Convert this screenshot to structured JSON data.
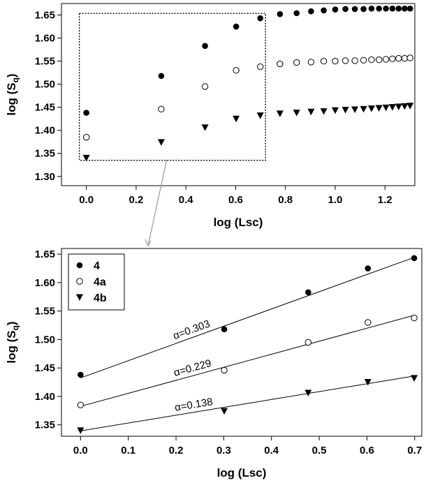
{
  "chart_data": [
    {
      "type": "scatter",
      "title": "",
      "xlabel": "log (Lsc)",
      "ylabel": "log (S",
      "ylabel_sub": "q",
      "ylabel_close": ")",
      "xlim": [
        -0.1,
        1.32
      ],
      "ylim": [
        1.28,
        1.675
      ],
      "xticks": [
        0.0,
        0.2,
        0.4,
        0.6,
        0.8,
        1.0,
        1.2
      ],
      "xtick_labels": [
        "0.0",
        "0.2",
        "0.4",
        "0.6",
        "0.8",
        "1.0",
        "1.2"
      ],
      "yticks": [
        1.3,
        1.35,
        1.4,
        1.45,
        1.5,
        1.55,
        1.6,
        1.65
      ],
      "ytick_labels": [
        "1.30",
        "1.35",
        "1.40",
        "1.45",
        "1.50",
        "1.55",
        "1.60",
        "1.65"
      ],
      "zoom_box": {
        "x": [
          0.0,
          0.72
        ],
        "y": [
          1.335,
          1.652
        ]
      },
      "series": [
        {
          "name": "4",
          "marker": "filled-circle",
          "x": [
            0.0,
            0.301,
            0.477,
            0.602,
            0.699,
            0.778,
            0.845,
            0.903,
            0.954,
            1.0,
            1.041,
            1.079,
            1.114,
            1.146,
            1.176,
            1.204,
            1.23,
            1.255,
            1.279,
            1.301
          ],
          "y": [
            1.438,
            1.518,
            1.583,
            1.625,
            1.643,
            1.652,
            1.654,
            1.658,
            1.66,
            1.662,
            1.663,
            1.663,
            1.663,
            1.664,
            1.664,
            1.664,
            1.664,
            1.664,
            1.664,
            1.664
          ]
        },
        {
          "name": "4a",
          "marker": "open-circle",
          "x": [
            0.0,
            0.301,
            0.477,
            0.602,
            0.699,
            0.778,
            0.845,
            0.903,
            0.954,
            1.0,
            1.041,
            1.079,
            1.114,
            1.146,
            1.176,
            1.204,
            1.23,
            1.255,
            1.279,
            1.301
          ],
          "y": [
            1.385,
            1.446,
            1.495,
            1.53,
            1.538,
            1.544,
            1.547,
            1.548,
            1.55,
            1.55,
            1.551,
            1.551,
            1.552,
            1.553,
            1.553,
            1.554,
            1.555,
            1.556,
            1.556,
            1.557
          ]
        },
        {
          "name": "4b",
          "marker": "triangle-down",
          "x": [
            0.0,
            0.301,
            0.477,
            0.602,
            0.699,
            0.778,
            0.845,
            0.903,
            0.954,
            1.0,
            1.041,
            1.079,
            1.114,
            1.146,
            1.176,
            1.204,
            1.23,
            1.255,
            1.279,
            1.301
          ],
          "y": [
            1.34,
            1.374,
            1.406,
            1.425,
            1.432,
            1.436,
            1.438,
            1.44,
            1.441,
            1.443,
            1.444,
            1.445,
            1.446,
            1.447,
            1.448,
            1.449,
            1.45,
            1.451,
            1.452,
            1.453
          ]
        }
      ]
    },
    {
      "type": "scatter",
      "title": "",
      "xlabel": "log (Lsc)",
      "ylabel": "log (S",
      "ylabel_sub": "q",
      "ylabel_close": ")",
      "xlim": [
        -0.04,
        0.715
      ],
      "ylim": [
        1.33,
        1.66
      ],
      "xticks": [
        0.0,
        0.1,
        0.2,
        0.3,
        0.4,
        0.5,
        0.6,
        0.7
      ],
      "xtick_labels": [
        "0.0",
        "0.1",
        "0.2",
        "0.3",
        "0.4",
        "0.5",
        "0.6",
        "0.7"
      ],
      "yticks": [
        1.35,
        1.4,
        1.45,
        1.5,
        1.55,
        1.6,
        1.65
      ],
      "ytick_labels": [
        "1.35",
        "1.40",
        "1.45",
        "1.50",
        "1.55",
        "1.60",
        "1.65"
      ],
      "legend": {
        "placement": "top-left",
        "entries": [
          "4",
          "4a",
          "4b"
        ]
      },
      "series": [
        {
          "name": "4",
          "marker": "filled-circle",
          "x": [
            0.0,
            0.301,
            0.477,
            0.602,
            0.699
          ],
          "y": [
            1.438,
            1.518,
            1.583,
            1.625,
            1.643
          ],
          "fit": {
            "intercept": 1.4325,
            "slope": 0.303,
            "label": "α=0.303",
            "label_x": 0.2
          }
        },
        {
          "name": "4a",
          "marker": "open-circle",
          "x": [
            0.0,
            0.301,
            0.477,
            0.602,
            0.699
          ],
          "y": [
            1.385,
            1.446,
            1.495,
            1.53,
            1.538
          ],
          "fit": {
            "intercept": 1.3825,
            "slope": 0.229,
            "label": "α=0.229",
            "label_x": 0.2
          }
        },
        {
          "name": "4b",
          "marker": "triangle-down",
          "x": [
            0.0,
            0.301,
            0.477,
            0.602,
            0.699
          ],
          "y": [
            1.34,
            1.374,
            1.406,
            1.425,
            1.432
          ],
          "fit": {
            "intercept": 1.3394,
            "slope": 0.138,
            "label": "α=0.138",
            "label_x": 0.2
          }
        }
      ]
    }
  ]
}
